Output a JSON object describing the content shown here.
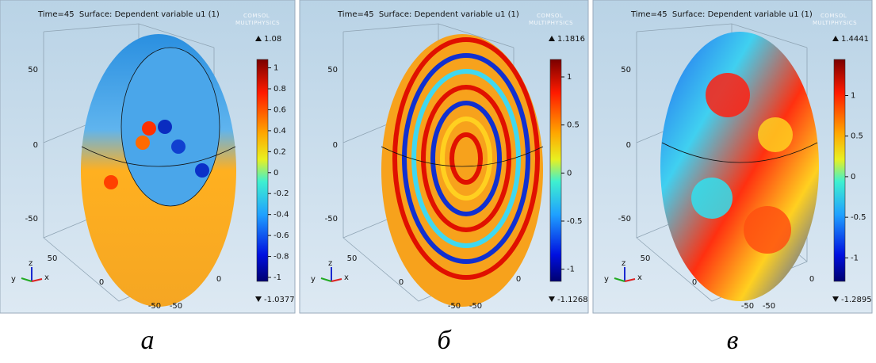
{
  "panels": [
    {
      "header": "Time=45  Surface: Dependent variable u1 (1)",
      "logo": [
        "COMSOL",
        "MULTIPHYSICS"
      ],
      "colorbar": {
        "max": 1.08,
        "min": -1.0377,
        "ticks": [
          1,
          0.8,
          0.6,
          0.4,
          0.2,
          0,
          -0.2,
          -0.4,
          -0.6,
          -0.8,
          -1
        ]
      },
      "z_axis": [
        50,
        0,
        -50
      ],
      "floor_axis": [
        50,
        0,
        -50,
        -50,
        0
      ],
      "triad": [
        "z",
        "y",
        "x"
      ],
      "caption": "а"
    },
    {
      "header": "Time=45  Surface: Dependent variable u1 (1)",
      "logo": [
        "COMSOL",
        "MULTIPHYSICS"
      ],
      "colorbar": {
        "max": 1.1816,
        "min": -1.1268,
        "ticks": [
          1,
          0.5,
          0,
          -0.5,
          -1
        ]
      },
      "z_axis": [
        50,
        0,
        -50
      ],
      "floor_axis": [
        50,
        0,
        -50,
        -50,
        0
      ],
      "triad": [
        "z",
        "y",
        "x"
      ],
      "caption": "б"
    },
    {
      "header": "Time=45  Surface: Dependent variable u1 (1)",
      "logo": [
        "COMSOL",
        "MULTIPHYSICS"
      ],
      "colorbar": {
        "max": 1.4441,
        "min": -1.2895,
        "ticks": [
          1,
          0.5,
          0,
          -0.5,
          -1
        ]
      },
      "z_axis": [
        50,
        0,
        -50
      ],
      "floor_axis": [
        50,
        0,
        -50,
        -50,
        0
      ],
      "triad": [
        "z",
        "y",
        "x"
      ],
      "caption": "в"
    }
  ]
}
